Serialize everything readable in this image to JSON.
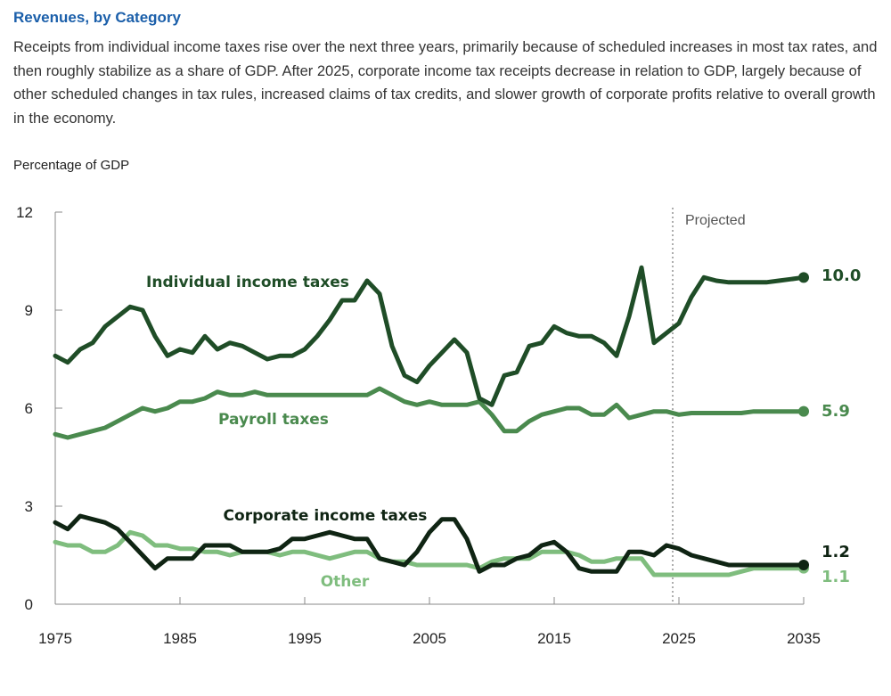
{
  "header": {
    "title": "Revenues, by Category",
    "description": "Receipts from individual income taxes rise over the next three years, primarily because of scheduled increases in most tax rates, and then roughly stabilize as a share of GDP. After 2025, corporate income tax receipts decrease in relation to GDP, largely because of other scheduled changes in tax rules, increased claims of tax credits, and slower growth of corporate profits relative to overall growth in the economy."
  },
  "chart_data": {
    "type": "line",
    "title": "",
    "ylabel": "Percentage of GDP",
    "xlabel": "",
    "xlim": [
      1975,
      2035
    ],
    "ylim": [
      0,
      12
    ],
    "x_ticks": [
      1975,
      1985,
      1995,
      2005,
      2015,
      2025,
      2035
    ],
    "y_ticks": [
      0,
      3,
      6,
      9,
      12
    ],
    "grid": false,
    "projection_start": 2024.5,
    "projection_label": "Projected",
    "x": [
      1975,
      1976,
      1977,
      1978,
      1979,
      1980,
      1981,
      1982,
      1983,
      1984,
      1985,
      1986,
      1987,
      1988,
      1989,
      1990,
      1991,
      1992,
      1993,
      1994,
      1995,
      1996,
      1997,
      1998,
      1999,
      2000,
      2001,
      2002,
      2003,
      2004,
      2005,
      2006,
      2007,
      2008,
      2009,
      2010,
      2011,
      2012,
      2013,
      2014,
      2015,
      2016,
      2017,
      2018,
      2019,
      2020,
      2021,
      2022,
      2023,
      2024,
      2025,
      2026,
      2027,
      2028,
      2029,
      2030,
      2031,
      2032,
      2033,
      2034,
      2035
    ],
    "series": [
      {
        "name": "Individual income taxes",
        "color": "#1f4d27",
        "end_label": "10.0",
        "values": [
          7.6,
          7.4,
          7.8,
          8.0,
          8.5,
          8.8,
          9.1,
          9.0,
          8.2,
          7.6,
          7.8,
          7.7,
          8.2,
          7.8,
          8.0,
          7.9,
          7.7,
          7.5,
          7.6,
          7.6,
          7.8,
          8.2,
          8.7,
          9.3,
          9.3,
          9.9,
          9.5,
          7.9,
          7.0,
          6.8,
          7.3,
          7.7,
          8.1,
          7.7,
          6.3,
          6.1,
          7.0,
          7.1,
          7.9,
          8.0,
          8.5,
          8.3,
          8.2,
          8.2,
          8.0,
          7.6,
          8.8,
          10.3,
          8.0,
          8.3,
          8.6,
          9.4,
          10.0,
          9.9,
          9.85,
          9.85,
          9.85,
          9.85,
          9.9,
          9.95,
          10.0
        ]
      },
      {
        "name": "Payroll taxes",
        "color": "#4a8a4e",
        "end_label": "5.9",
        "values": [
          5.2,
          5.1,
          5.2,
          5.3,
          5.4,
          5.6,
          5.8,
          6.0,
          5.9,
          6.0,
          6.2,
          6.2,
          6.3,
          6.5,
          6.4,
          6.4,
          6.5,
          6.4,
          6.4,
          6.4,
          6.4,
          6.4,
          6.4,
          6.4,
          6.4,
          6.4,
          6.6,
          6.4,
          6.2,
          6.1,
          6.2,
          6.1,
          6.1,
          6.1,
          6.2,
          5.8,
          5.3,
          5.3,
          5.6,
          5.8,
          5.9,
          6.0,
          6.0,
          5.8,
          5.8,
          6.1,
          5.7,
          5.8,
          5.9,
          5.9,
          5.8,
          5.85,
          5.85,
          5.85,
          5.85,
          5.85,
          5.9,
          5.9,
          5.9,
          5.9,
          5.9
        ]
      },
      {
        "name": "Corporate income taxes",
        "color": "#0f2413",
        "end_label": "1.2",
        "values": [
          2.5,
          2.3,
          2.7,
          2.6,
          2.5,
          2.3,
          1.9,
          1.5,
          1.1,
          1.4,
          1.4,
          1.4,
          1.8,
          1.8,
          1.8,
          1.6,
          1.6,
          1.6,
          1.7,
          2.0,
          2.0,
          2.1,
          2.2,
          2.1,
          2.0,
          2.0,
          1.4,
          1.3,
          1.2,
          1.6,
          2.2,
          2.6,
          2.6,
          2.0,
          1.0,
          1.2,
          1.2,
          1.4,
          1.5,
          1.8,
          1.9,
          1.6,
          1.1,
          1.0,
          1.0,
          1.0,
          1.6,
          1.6,
          1.5,
          1.8,
          1.7,
          1.5,
          1.4,
          1.3,
          1.2,
          1.2,
          1.2,
          1.2,
          1.2,
          1.2,
          1.2
        ]
      },
      {
        "name": "Other",
        "color": "#7fbd7e",
        "end_label": "1.1",
        "values": [
          1.9,
          1.8,
          1.8,
          1.6,
          1.6,
          1.8,
          2.2,
          2.1,
          1.8,
          1.8,
          1.7,
          1.7,
          1.6,
          1.6,
          1.5,
          1.6,
          1.6,
          1.6,
          1.5,
          1.6,
          1.6,
          1.5,
          1.4,
          1.5,
          1.6,
          1.6,
          1.4,
          1.3,
          1.3,
          1.2,
          1.2,
          1.2,
          1.2,
          1.2,
          1.1,
          1.3,
          1.4,
          1.4,
          1.4,
          1.6,
          1.6,
          1.6,
          1.5,
          1.3,
          1.3,
          1.4,
          1.4,
          1.4,
          0.9,
          0.9,
          0.9,
          0.9,
          0.9,
          0.9,
          0.9,
          1.0,
          1.1,
          1.1,
          1.1,
          1.1,
          1.1
        ]
      }
    ]
  }
}
